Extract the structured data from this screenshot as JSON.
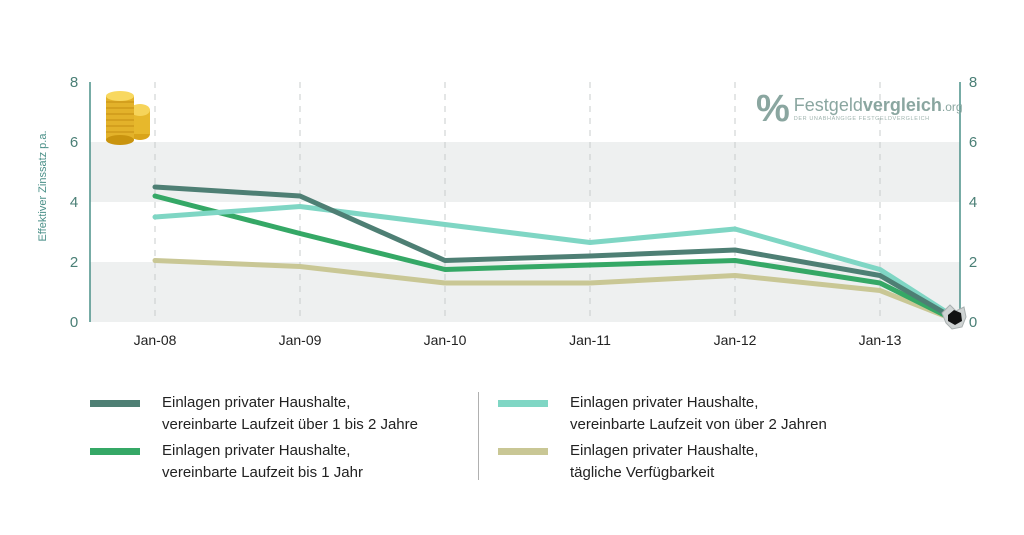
{
  "chart_data": {
    "type": "line",
    "ylabel": "Effektiver Zinssatz p.a.",
    "ylim": [
      0,
      8
    ],
    "yticks": [
      0,
      2,
      4,
      6,
      8
    ],
    "x_tick_labels": [
      "Jan-08",
      "Jan-09",
      "Jan-10",
      "Jan-11",
      "Jan-12",
      "Jan-13"
    ],
    "x_range": [
      0,
      5.6
    ],
    "grid": "alternating horizontal bands, dashed vertical lines at ticks",
    "legend_placement": "bottom",
    "series": [
      {
        "name": "Einlagen privater Haushalte, vereinbarte Laufzeit über 1 bis 2 Jahre",
        "name_lines": [
          "Einlagen privater Haushalte,",
          "vereinbarte Laufzeit über 1 bis 2 Jahre"
        ],
        "color": "#4e7f74",
        "x": [
          0,
          1,
          2,
          3,
          4,
          5,
          5.5
        ],
        "y": [
          4.5,
          4.2,
          2.05,
          2.2,
          2.4,
          1.55,
          0.15
        ]
      },
      {
        "name": "Einlagen privater Haushalte, vereinbarte Laufzeit bis 1 Jahr",
        "name_lines": [
          "Einlagen privater Haushalte,",
          "vereinbarte Laufzeit bis 1 Jahr"
        ],
        "color": "#35a866",
        "x": [
          0,
          1,
          2,
          3,
          4,
          5,
          5.5
        ],
        "y": [
          4.2,
          2.95,
          1.75,
          1.9,
          2.05,
          1.3,
          0.1
        ]
      },
      {
        "name": "Einlagen privater Haushalte, vereinbarte Laufzeit von über 2 Jahren",
        "name_lines": [
          "Einlagen privater Haushalte,",
          "vereinbarte Laufzeit von über 2 Jahren"
        ],
        "color": "#7fd6c4",
        "x": [
          0,
          1,
          2,
          3,
          4,
          5,
          5.5
        ],
        "y": [
          3.5,
          3.85,
          3.25,
          2.65,
          3.1,
          1.75,
          0.2
        ]
      },
      {
        "name": "Einlagen privater Haushalte, tägliche Verfügbarkeit",
        "name_lines": [
          "Einlagen privater Haushalte,",
          "tägliche Verfügbarkeit"
        ],
        "color": "#c9c795",
        "x": [
          0,
          1,
          2,
          3,
          4,
          5,
          5.5
        ],
        "y": [
          2.05,
          1.85,
          1.3,
          1.3,
          1.55,
          1.05,
          0.1
        ]
      }
    ]
  },
  "logo": {
    "symbol": "%",
    "name_part1": "Festgeld",
    "name_part2": "vergleich",
    "tld": ".org",
    "tagline": "DER UNABHÄNGIGE FESTGELDVERGLEICH"
  },
  "icons": {
    "coins": "coin-stack-icon",
    "hole": "torn-hole-icon"
  },
  "colors": {
    "axis": "#4a9088",
    "band": "#eef0f0"
  }
}
